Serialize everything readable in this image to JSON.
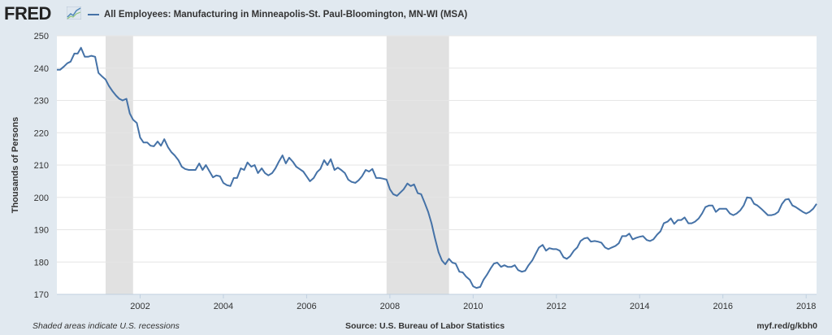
{
  "header": {
    "logo_text": "FRED",
    "logo_icon": "fred-trend-line-icon",
    "series_color": "#4572a7"
  },
  "chart_data": {
    "type": "line",
    "title": "All Employees: Manufacturing in Minneapolis-St. Paul-Bloomington, MN-WI (MSA)",
    "xlabel": "",
    "ylabel": "Thousands of Persons",
    "ylim": [
      170,
      250
    ],
    "xlim": [
      2000.0,
      2018.25
    ],
    "x_ticks": [
      2002,
      2004,
      2006,
      2008,
      2010,
      2012,
      2014,
      2016,
      2018
    ],
    "x_tick_labels": [
      "2002",
      "2004",
      "2006",
      "2008",
      "2010",
      "2012",
      "2014",
      "2016",
      "2018"
    ],
    "y_ticks": [
      170,
      180,
      190,
      200,
      210,
      220,
      230,
      240,
      250
    ],
    "y_tick_labels": [
      "170",
      "180",
      "190",
      "200",
      "210",
      "220",
      "230",
      "240",
      "250"
    ],
    "grid": "horizontal",
    "legend": "top-left",
    "recessions": [
      {
        "start": 2001.17,
        "end": 2001.83
      },
      {
        "start": 2007.92,
        "end": 2009.42
      }
    ],
    "series": [
      {
        "name": "All Employees: Manufacturing in Minneapolis-St. Paul-Bloomington, MN-WI (MSA)",
        "color": "#4572a7",
        "x": [
          2000.0,
          2000.08,
          2000.17,
          2000.25,
          2000.33,
          2000.42,
          2000.5,
          2000.58,
          2000.67,
          2000.75,
          2000.83,
          2000.92,
          2001.0,
          2001.08,
          2001.17,
          2001.25,
          2001.33,
          2001.42,
          2001.5,
          2001.58,
          2001.67,
          2001.75,
          2001.83,
          2001.92,
          2002.0,
          2002.08,
          2002.17,
          2002.25,
          2002.33,
          2002.42,
          2002.5,
          2002.58,
          2002.67,
          2002.75,
          2002.83,
          2002.92,
          2003.0,
          2003.08,
          2003.17,
          2003.25,
          2003.33,
          2003.42,
          2003.5,
          2003.58,
          2003.67,
          2003.75,
          2003.83,
          2003.92,
          2004.0,
          2004.08,
          2004.17,
          2004.25,
          2004.33,
          2004.42,
          2004.5,
          2004.58,
          2004.67,
          2004.75,
          2004.83,
          2004.92,
          2005.0,
          2005.08,
          2005.17,
          2005.25,
          2005.33,
          2005.42,
          2005.5,
          2005.58,
          2005.67,
          2005.75,
          2005.83,
          2005.92,
          2006.0,
          2006.08,
          2006.17,
          2006.25,
          2006.33,
          2006.42,
          2006.5,
          2006.58,
          2006.67,
          2006.75,
          2006.83,
          2006.92,
          2007.0,
          2007.08,
          2007.17,
          2007.25,
          2007.33,
          2007.42,
          2007.5,
          2007.58,
          2007.67,
          2007.75,
          2007.83,
          2007.92,
          2008.0,
          2008.08,
          2008.17,
          2008.25,
          2008.33,
          2008.42,
          2008.5,
          2008.58,
          2008.67,
          2008.75,
          2008.83,
          2008.92,
          2009.0,
          2009.08,
          2009.17,
          2009.25,
          2009.33,
          2009.42,
          2009.5,
          2009.58,
          2009.67,
          2009.75,
          2009.83,
          2009.92,
          2010.0,
          2010.08,
          2010.17,
          2010.25,
          2010.33,
          2010.42,
          2010.5,
          2010.58,
          2010.67,
          2010.75,
          2010.83,
          2010.92,
          2011.0,
          2011.08,
          2011.17,
          2011.25,
          2011.33,
          2011.42,
          2011.5,
          2011.58,
          2011.67,
          2011.75,
          2011.83,
          2011.92,
          2012.0,
          2012.08,
          2012.17,
          2012.25,
          2012.33,
          2012.42,
          2012.5,
          2012.58,
          2012.67,
          2012.75,
          2012.83,
          2012.92,
          2013.0,
          2013.08,
          2013.17,
          2013.25,
          2013.33,
          2013.42,
          2013.5,
          2013.58,
          2013.67,
          2013.75,
          2013.83,
          2013.92,
          2014.0,
          2014.08,
          2014.17,
          2014.25,
          2014.33,
          2014.42,
          2014.5,
          2014.58,
          2014.67,
          2014.75,
          2014.83,
          2014.92,
          2015.0,
          2015.08,
          2015.17,
          2015.25,
          2015.33,
          2015.42,
          2015.5,
          2015.58,
          2015.67,
          2015.75,
          2015.83,
          2015.92,
          2016.0,
          2016.08,
          2016.17,
          2016.25,
          2016.33,
          2016.42,
          2016.5,
          2016.58,
          2016.67,
          2016.75,
          2016.83,
          2016.92,
          2017.0,
          2017.08,
          2017.17,
          2017.25,
          2017.33,
          2017.42,
          2017.5,
          2017.58,
          2017.67,
          2017.75,
          2017.83,
          2017.92,
          2018.0,
          2018.08,
          2018.17,
          2018.25
        ],
        "values": [
          239.5,
          239.5,
          240.5,
          241.5,
          242.0,
          244.5,
          244.5,
          246.3,
          243.5,
          243.5,
          243.8,
          243.5,
          238.5,
          237.5,
          236.5,
          234.5,
          233.0,
          231.5,
          230.5,
          230.0,
          230.5,
          226.0,
          224.0,
          223.0,
          218.5,
          217.0,
          217.0,
          216.0,
          215.8,
          217.3,
          216.0,
          218.0,
          215.5,
          214.0,
          213.0,
          211.5,
          209.5,
          208.8,
          208.5,
          208.5,
          208.5,
          210.5,
          208.5,
          210.0,
          208.0,
          206.2,
          206.8,
          206.5,
          204.5,
          203.8,
          203.5,
          206.0,
          206.0,
          209.0,
          208.5,
          210.8,
          209.5,
          210.0,
          207.5,
          209.0,
          207.5,
          206.8,
          207.5,
          209.0,
          211.0,
          213.0,
          210.5,
          212.3,
          211.0,
          209.5,
          208.8,
          208.0,
          206.5,
          205.0,
          206.0,
          207.8,
          208.8,
          211.5,
          210.0,
          211.8,
          208.5,
          209.2,
          208.5,
          207.5,
          205.5,
          204.8,
          204.5,
          205.3,
          206.5,
          208.5,
          208.0,
          208.8,
          206.0,
          206.0,
          205.8,
          205.5,
          202.5,
          201.0,
          200.5,
          201.5,
          202.5,
          204.3,
          203.5,
          204.0,
          201.3,
          201.0,
          198.5,
          195.5,
          192.0,
          187.5,
          183.0,
          180.5,
          179.3,
          181.0,
          179.8,
          179.5,
          177.0,
          176.8,
          175.5,
          174.5,
          172.5,
          172.0,
          172.3,
          174.5,
          176.0,
          178.0,
          179.5,
          179.8,
          178.5,
          179.0,
          178.5,
          178.5,
          179.0,
          177.5,
          177.0,
          177.3,
          179.0,
          180.5,
          182.5,
          184.5,
          185.3,
          183.5,
          184.3,
          184.0,
          184.0,
          183.5,
          181.5,
          181.0,
          181.8,
          183.5,
          184.5,
          186.5,
          187.3,
          187.5,
          186.3,
          186.5,
          186.3,
          186.0,
          184.5,
          184.0,
          184.5,
          185.0,
          185.8,
          188.0,
          188.0,
          188.8,
          187.0,
          187.5,
          187.8,
          188.0,
          186.8,
          186.5,
          187.0,
          188.5,
          189.5,
          192.0,
          192.5,
          193.5,
          191.8,
          193.0,
          193.0,
          193.8,
          192.0,
          192.0,
          192.5,
          193.5,
          195.0,
          197.0,
          197.5,
          197.5,
          195.5,
          196.5,
          196.5,
          196.5,
          195.0,
          194.5,
          195.0,
          196.0,
          197.5,
          200.0,
          199.8,
          198.0,
          197.5,
          196.5,
          195.5,
          194.5,
          194.5,
          194.8,
          195.5,
          198.0,
          199.3,
          199.5,
          197.5,
          197.0,
          196.3,
          195.5,
          195.0,
          195.5,
          196.5,
          198.0
        ]
      }
    ]
  },
  "footer": {
    "note": "Shaded areas indicate U.S. recessions",
    "source": "Source: U.S. Bureau of Labor Statistics",
    "link": "myf.red/g/kbh0"
  }
}
